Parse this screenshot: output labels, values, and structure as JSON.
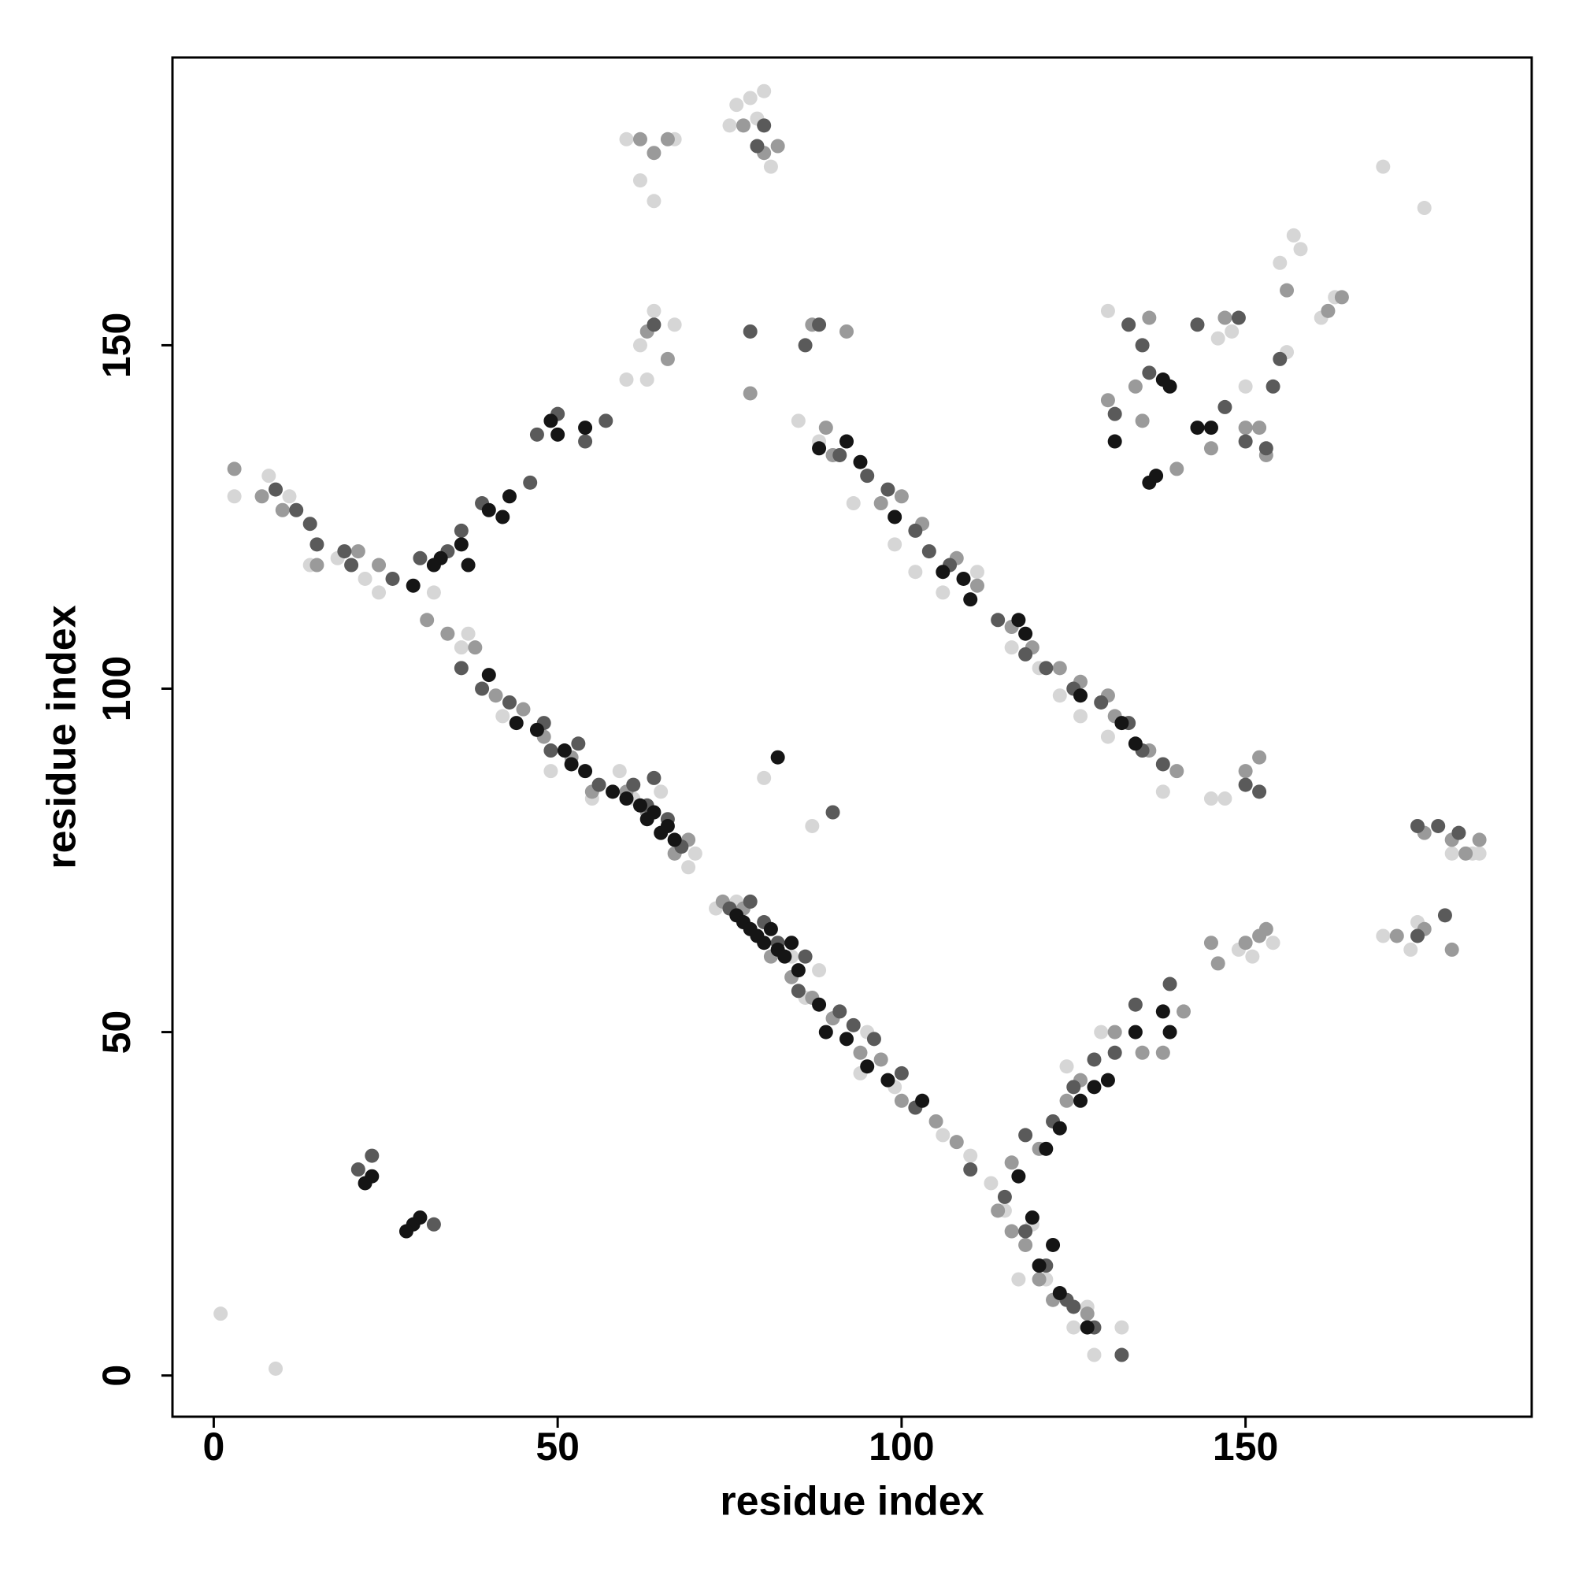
{
  "chart_data": {
    "type": "scatter",
    "x_label": "residue index",
    "y_label": "residue index",
    "xlim": [
      -6,
      191.6
    ],
    "ylim": [
      -6,
      191.9
    ],
    "xticks": [
      0,
      50,
      100,
      150
    ],
    "yticks": [
      0,
      50,
      100,
      150
    ],
    "grid": false,
    "series": [
      {
        "color": "#d6d6d6",
        "x": [
          1,
          9,
          3,
          8,
          11,
          14,
          18,
          22,
          24,
          32,
          37,
          36,
          42,
          49,
          55,
          59,
          61,
          65,
          69,
          70,
          73,
          76,
          84,
          86,
          88,
          94,
          95,
          99,
          106,
          110,
          113,
          85,
          88,
          93,
          99,
          102,
          106,
          111,
          116,
          120,
          123,
          126,
          130,
          138,
          145,
          115,
          119,
          117,
          121,
          125,
          128,
          132,
          127,
          124,
          129,
          60,
          62,
          63,
          64,
          67,
          60,
          62,
          64,
          67,
          76,
          78,
          80,
          75,
          81,
          79,
          87,
          147,
          149,
          151,
          154,
          174,
          170,
          175,
          183,
          180,
          184,
          130,
          133,
          135,
          146,
          150,
          148,
          156,
          155,
          157,
          158,
          163,
          161,
          170,
          176,
          80
        ],
        "values": [
          9,
          1,
          128,
          131,
          128,
          118,
          119,
          116,
          114,
          114,
          108,
          106,
          96,
          88,
          84,
          88,
          84,
          85,
          74,
          76,
          68,
          69,
          61,
          55,
          59,
          44,
          50,
          42,
          35,
          32,
          28,
          139,
          136,
          127,
          121,
          117,
          114,
          117,
          106,
          103,
          99,
          96,
          93,
          85,
          84,
          24,
          22,
          14,
          14,
          7,
          3,
          7,
          10,
          45,
          50,
          145,
          150,
          145,
          155,
          153,
          180,
          174,
          171,
          180,
          185,
          186,
          187,
          182,
          176,
          183,
          80,
          84,
          62,
          61,
          63,
          62,
          64,
          66,
          76,
          76,
          76,
          155,
          153,
          150,
          151,
          144,
          152,
          149,
          162,
          166,
          164,
          157,
          154,
          176,
          170,
          87
        ]
      },
      {
        "color": "#9a9a9a",
        "x": [
          3,
          7,
          10,
          15,
          21,
          24,
          31,
          34,
          38,
          41,
          45,
          48,
          52,
          55,
          60,
          63,
          67,
          69,
          74,
          77,
          81,
          84,
          87,
          90,
          94,
          97,
          100,
          105,
          108,
          89,
          90,
          97,
          100,
          103,
          108,
          111,
          116,
          119,
          123,
          126,
          130,
          131,
          136,
          140,
          114,
          116,
          118,
          120,
          122,
          127,
          116,
          120,
          124,
          126,
          131,
          135,
          138,
          141,
          62,
          64,
          66,
          77,
          80,
          82,
          63,
          66,
          87,
          92,
          78,
          145,
          146,
          150,
          152,
          153,
          172,
          176,
          180,
          176,
          180,
          182,
          184,
          130,
          134,
          135,
          140,
          145,
          150,
          152,
          153,
          136,
          147,
          156,
          162,
          164,
          150,
          152
        ],
        "values": [
          132,
          128,
          126,
          118,
          120,
          118,
          110,
          108,
          106,
          99,
          97,
          93,
          90,
          85,
          85,
          82,
          76,
          78,
          69,
          68,
          61,
          58,
          55,
          52,
          47,
          46,
          40,
          37,
          34,
          138,
          134,
          127,
          128,
          124,
          119,
          115,
          109,
          106,
          103,
          101,
          99,
          96,
          91,
          88,
          24,
          21,
          19,
          14,
          11,
          9,
          31,
          33,
          40,
          43,
          50,
          47,
          47,
          53,
          180,
          178,
          180,
          182,
          178,
          179,
          152,
          148,
          153,
          152,
          143,
          63,
          60,
          63,
          64,
          65,
          64,
          65,
          62,
          79,
          78,
          76,
          78,
          142,
          144,
          139,
          132,
          135,
          138,
          138,
          134,
          154,
          154,
          158,
          155,
          157,
          88,
          90
        ]
      },
      {
        "color": "#5a5a5a",
        "x": [
          9,
          12,
          14,
          15,
          19,
          20,
          26,
          30,
          34,
          36,
          39,
          46,
          47,
          50,
          54,
          57,
          36,
          39,
          43,
          48,
          49,
          53,
          56,
          61,
          63,
          64,
          66,
          68,
          75,
          78,
          80,
          82,
          86,
          85,
          91,
          93,
          96,
          100,
          102,
          110,
          91,
          95,
          98,
          102,
          104,
          107,
          114,
          118,
          121,
          125,
          129,
          133,
          135,
          138,
          115,
          118,
          121,
          124,
          125,
          128,
          132,
          118,
          122,
          125,
          128,
          131,
          134,
          139,
          133,
          135,
          136,
          131,
          143,
          149,
          147,
          150,
          153,
          154,
          155,
          80,
          79,
          152,
          150,
          175,
          178,
          181,
          175,
          179,
          90,
          21,
          23,
          32,
          78,
          88,
          86,
          64
        ],
        "values": [
          129,
          126,
          124,
          121,
          120,
          118,
          116,
          119,
          120,
          123,
          127,
          130,
          137,
          140,
          136,
          139,
          103,
          100,
          98,
          95,
          91,
          92,
          86,
          86,
          83,
          87,
          81,
          77,
          68,
          69,
          66,
          63,
          61,
          56,
          53,
          51,
          49,
          44,
          39,
          30,
          134,
          131,
          129,
          123,
          120,
          118,
          110,
          105,
          103,
          100,
          98,
          95,
          91,
          89,
          26,
          21,
          16,
          11,
          10,
          7,
          3,
          35,
          37,
          42,
          46,
          47,
          54,
          57,
          153,
          150,
          146,
          140,
          153,
          154,
          141,
          136,
          135,
          144,
          148,
          182,
          179,
          85,
          86,
          80,
          80,
          79,
          64,
          67,
          82,
          30,
          32,
          22,
          152,
          153,
          150,
          153
        ]
      },
      {
        "color": "#151515",
        "x": [
          33,
          36,
          37,
          40,
          42,
          43,
          49,
          50,
          54,
          29,
          32,
          40,
          44,
          47,
          51,
          52,
          54,
          58,
          60,
          62,
          63,
          64,
          65,
          66,
          67,
          76,
          77,
          78,
          79,
          80,
          81,
          82,
          83,
          84,
          85,
          88,
          89,
          92,
          95,
          98,
          103,
          88,
          92,
          94,
          99,
          106,
          109,
          110,
          117,
          118,
          126,
          132,
          134,
          117,
          119,
          122,
          120,
          123,
          127,
          121,
          123,
          126,
          128,
          130,
          134,
          138,
          139,
          131,
          136,
          137,
          138,
          139,
          143,
          145,
          82,
          22,
          23,
          29,
          30,
          28
        ],
        "values": [
          119,
          121,
          118,
          126,
          125,
          128,
          139,
          137,
          138,
          115,
          118,
          102,
          95,
          94,
          91,
          89,
          88,
          85,
          84,
          83,
          81,
          82,
          79,
          80,
          78,
          67,
          66,
          65,
          64,
          63,
          65,
          62,
          61,
          63,
          59,
          54,
          50,
          49,
          45,
          43,
          40,
          135,
          136,
          133,
          125,
          117,
          116,
          113,
          110,
          108,
          99,
          95,
          92,
          29,
          23,
          19,
          16,
          12,
          7,
          33,
          36,
          40,
          42,
          43,
          50,
          53,
          50,
          136,
          130,
          131,
          145,
          144,
          138,
          138,
          90,
          28,
          29,
          22,
          23,
          21
        ]
      }
    ]
  }
}
